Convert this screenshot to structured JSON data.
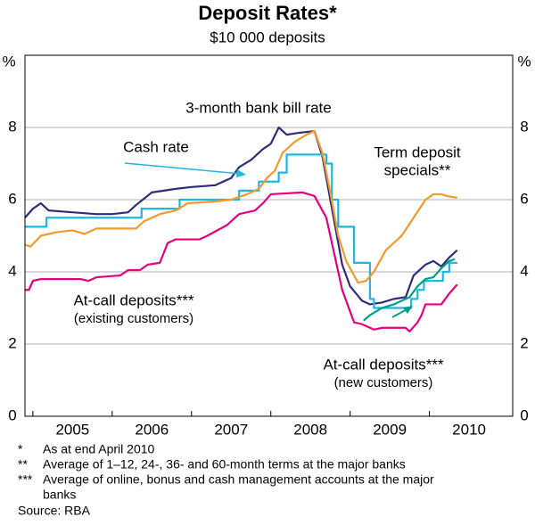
{
  "chart_data": {
    "type": "line",
    "title": "Deposit Rates*",
    "subtitle": "$10 000 deposits",
    "y_unit": "%",
    "xlim": [
      2004.9,
      2011.05
    ],
    "xticks": [
      {
        "value": 2005.5,
        "label": "2005"
      },
      {
        "value": 2006.5,
        "label": "2006"
      },
      {
        "value": 2007.5,
        "label": "2007"
      },
      {
        "value": 2008.5,
        "label": "2008"
      },
      {
        "value": 2009.5,
        "label": "2009"
      },
      {
        "value": 2010.5,
        "label": "2010"
      }
    ],
    "ylim": [
      0,
      10
    ],
    "yticks": [
      0,
      2,
      4,
      6,
      8
    ],
    "grid": true,
    "series": [
      {
        "label_lines": [
          "3-month bank bill rate"
        ],
        "color": "#2e2d7a",
        "x": [
          2004.9,
          2005.0,
          2005.1,
          2005.2,
          2005.5,
          2005.8,
          2006.0,
          2006.2,
          2006.3,
          2006.5,
          2006.8,
          2007.0,
          2007.3,
          2007.5,
          2007.6,
          2007.75,
          2007.9,
          2008.0,
          2008.1,
          2008.2,
          2008.35,
          2008.55,
          2008.65,
          2008.75,
          2008.9,
          2009.0,
          2009.15,
          2009.25,
          2009.4,
          2009.55,
          2009.7,
          2009.8,
          2009.95,
          2010.05,
          2010.15,
          2010.25,
          2010.35
        ],
        "values": [
          5.5,
          5.75,
          5.9,
          5.7,
          5.65,
          5.6,
          5.6,
          5.65,
          5.85,
          6.2,
          6.3,
          6.35,
          6.4,
          6.6,
          6.9,
          7.1,
          7.4,
          7.55,
          8.0,
          7.8,
          7.85,
          7.9,
          7.2,
          6.0,
          4.2,
          3.6,
          3.2,
          3.1,
          3.15,
          3.25,
          3.3,
          3.9,
          4.2,
          4.3,
          4.15,
          4.4,
          4.6
        ]
      },
      {
        "label_lines": [
          "Cash rate"
        ],
        "color": "#1fb6e0",
        "x": [
          2004.9,
          2005.17,
          2005.17,
          2006.37,
          2006.37,
          2006.85,
          2006.85,
          2007.6,
          2007.6,
          2007.85,
          2007.85,
          2008.1,
          2008.1,
          2008.2,
          2008.2,
          2008.7,
          2008.7,
          2008.77,
          2008.77,
          2008.85,
          2008.85,
          2009.05,
          2009.05,
          2009.25,
          2009.25,
          2009.3,
          2009.3,
          2009.77,
          2009.77,
          2009.85,
          2009.85,
          2009.93,
          2009.93,
          2010.17,
          2010.17,
          2010.25,
          2010.25,
          2010.35
        ],
        "values": [
          5.25,
          5.25,
          5.5,
          5.5,
          5.75,
          5.75,
          6.0,
          6.0,
          6.25,
          6.25,
          6.5,
          6.5,
          6.75,
          6.75,
          7.25,
          7.25,
          7.0,
          7.0,
          6.0,
          6.0,
          5.25,
          5.25,
          4.25,
          4.25,
          3.25,
          3.25,
          3.0,
          3.0,
          3.25,
          3.25,
          3.5,
          3.5,
          3.75,
          3.75,
          4.0,
          4.0,
          4.25,
          4.25
        ]
      },
      {
        "label_lines": [
          "Term deposit",
          "specials**"
        ],
        "color": "#f39a2b",
        "x": [
          2004.9,
          2004.97,
          2005.1,
          2005.3,
          2005.5,
          2005.65,
          2005.8,
          2006.3,
          2006.4,
          2006.6,
          2006.8,
          2006.95,
          2007.3,
          2007.5,
          2007.7,
          2007.85,
          2007.95,
          2008.05,
          2008.15,
          2008.3,
          2008.45,
          2008.55,
          2008.65,
          2008.75,
          2008.85,
          2008.95,
          2009.1,
          2009.2,
          2009.3,
          2009.45,
          2009.55,
          2009.65,
          2009.8,
          2009.95,
          2010.05,
          2010.15,
          2010.22,
          2010.35
        ],
        "values": [
          4.75,
          4.7,
          5.0,
          5.1,
          5.15,
          5.05,
          5.2,
          5.2,
          5.4,
          5.6,
          5.7,
          5.9,
          5.95,
          6.0,
          6.15,
          6.3,
          6.6,
          6.8,
          7.3,
          7.6,
          7.8,
          7.9,
          7.3,
          6.2,
          5.0,
          4.3,
          3.7,
          3.75,
          4.0,
          4.6,
          4.8,
          5.0,
          5.5,
          6.0,
          6.15,
          6.15,
          6.1,
          6.05
        ]
      },
      {
        "label_lines": [
          "At-call deposits***",
          "(existing customers)"
        ],
        "color": "#e5007d",
        "x": [
          2004.9,
          2004.95,
          2005.0,
          2005.1,
          2005.6,
          2005.7,
          2005.8,
          2006.1,
          2006.2,
          2006.35,
          2006.45,
          2006.6,
          2006.7,
          2006.8,
          2007.1,
          2007.2,
          2007.45,
          2007.6,
          2007.8,
          2007.9,
          2008.0,
          2008.4,
          2008.55,
          2008.7,
          2008.8,
          2008.9,
          2009.0,
          2009.05,
          2009.15,
          2009.3,
          2009.4,
          2009.7,
          2009.75,
          2009.85,
          2009.9,
          2009.95,
          2010.15,
          2010.25,
          2010.35
        ],
        "values": [
          3.5,
          3.5,
          3.75,
          3.8,
          3.8,
          3.75,
          3.85,
          3.9,
          4.05,
          4.05,
          4.2,
          4.25,
          4.8,
          4.9,
          4.9,
          5.0,
          5.3,
          5.6,
          5.7,
          5.9,
          6.15,
          6.2,
          6.1,
          5.5,
          4.5,
          3.5,
          2.9,
          2.6,
          2.55,
          2.4,
          2.45,
          2.45,
          2.35,
          2.6,
          2.8,
          3.1,
          3.1,
          3.4,
          3.65
        ]
      },
      {
        "label_lines": [
          "At-call deposits***",
          "(new customers)"
        ],
        "color": "#009e88",
        "x": [
          2009.17,
          2009.25,
          2009.4,
          2009.55,
          2009.75,
          2009.85,
          2009.95,
          2010.05,
          2010.15,
          2010.25,
          2010.32
        ],
        "values": [
          2.65,
          2.8,
          3.0,
          3.1,
          3.3,
          3.6,
          3.8,
          3.85,
          4.1,
          4.3,
          4.35
        ]
      }
    ],
    "notes": [
      {
        "marker": "*",
        "lines": [
          "As at end April 2010"
        ]
      },
      {
        "marker": "**",
        "lines": [
          "Average of 1–12, 24-, 36- and 60-month terms at the major banks"
        ]
      },
      {
        "marker": "***",
        "lines": [
          "Average of online, bonus and cash management accounts at the major",
          "banks"
        ]
      }
    ],
    "source": "Source: RBA"
  }
}
